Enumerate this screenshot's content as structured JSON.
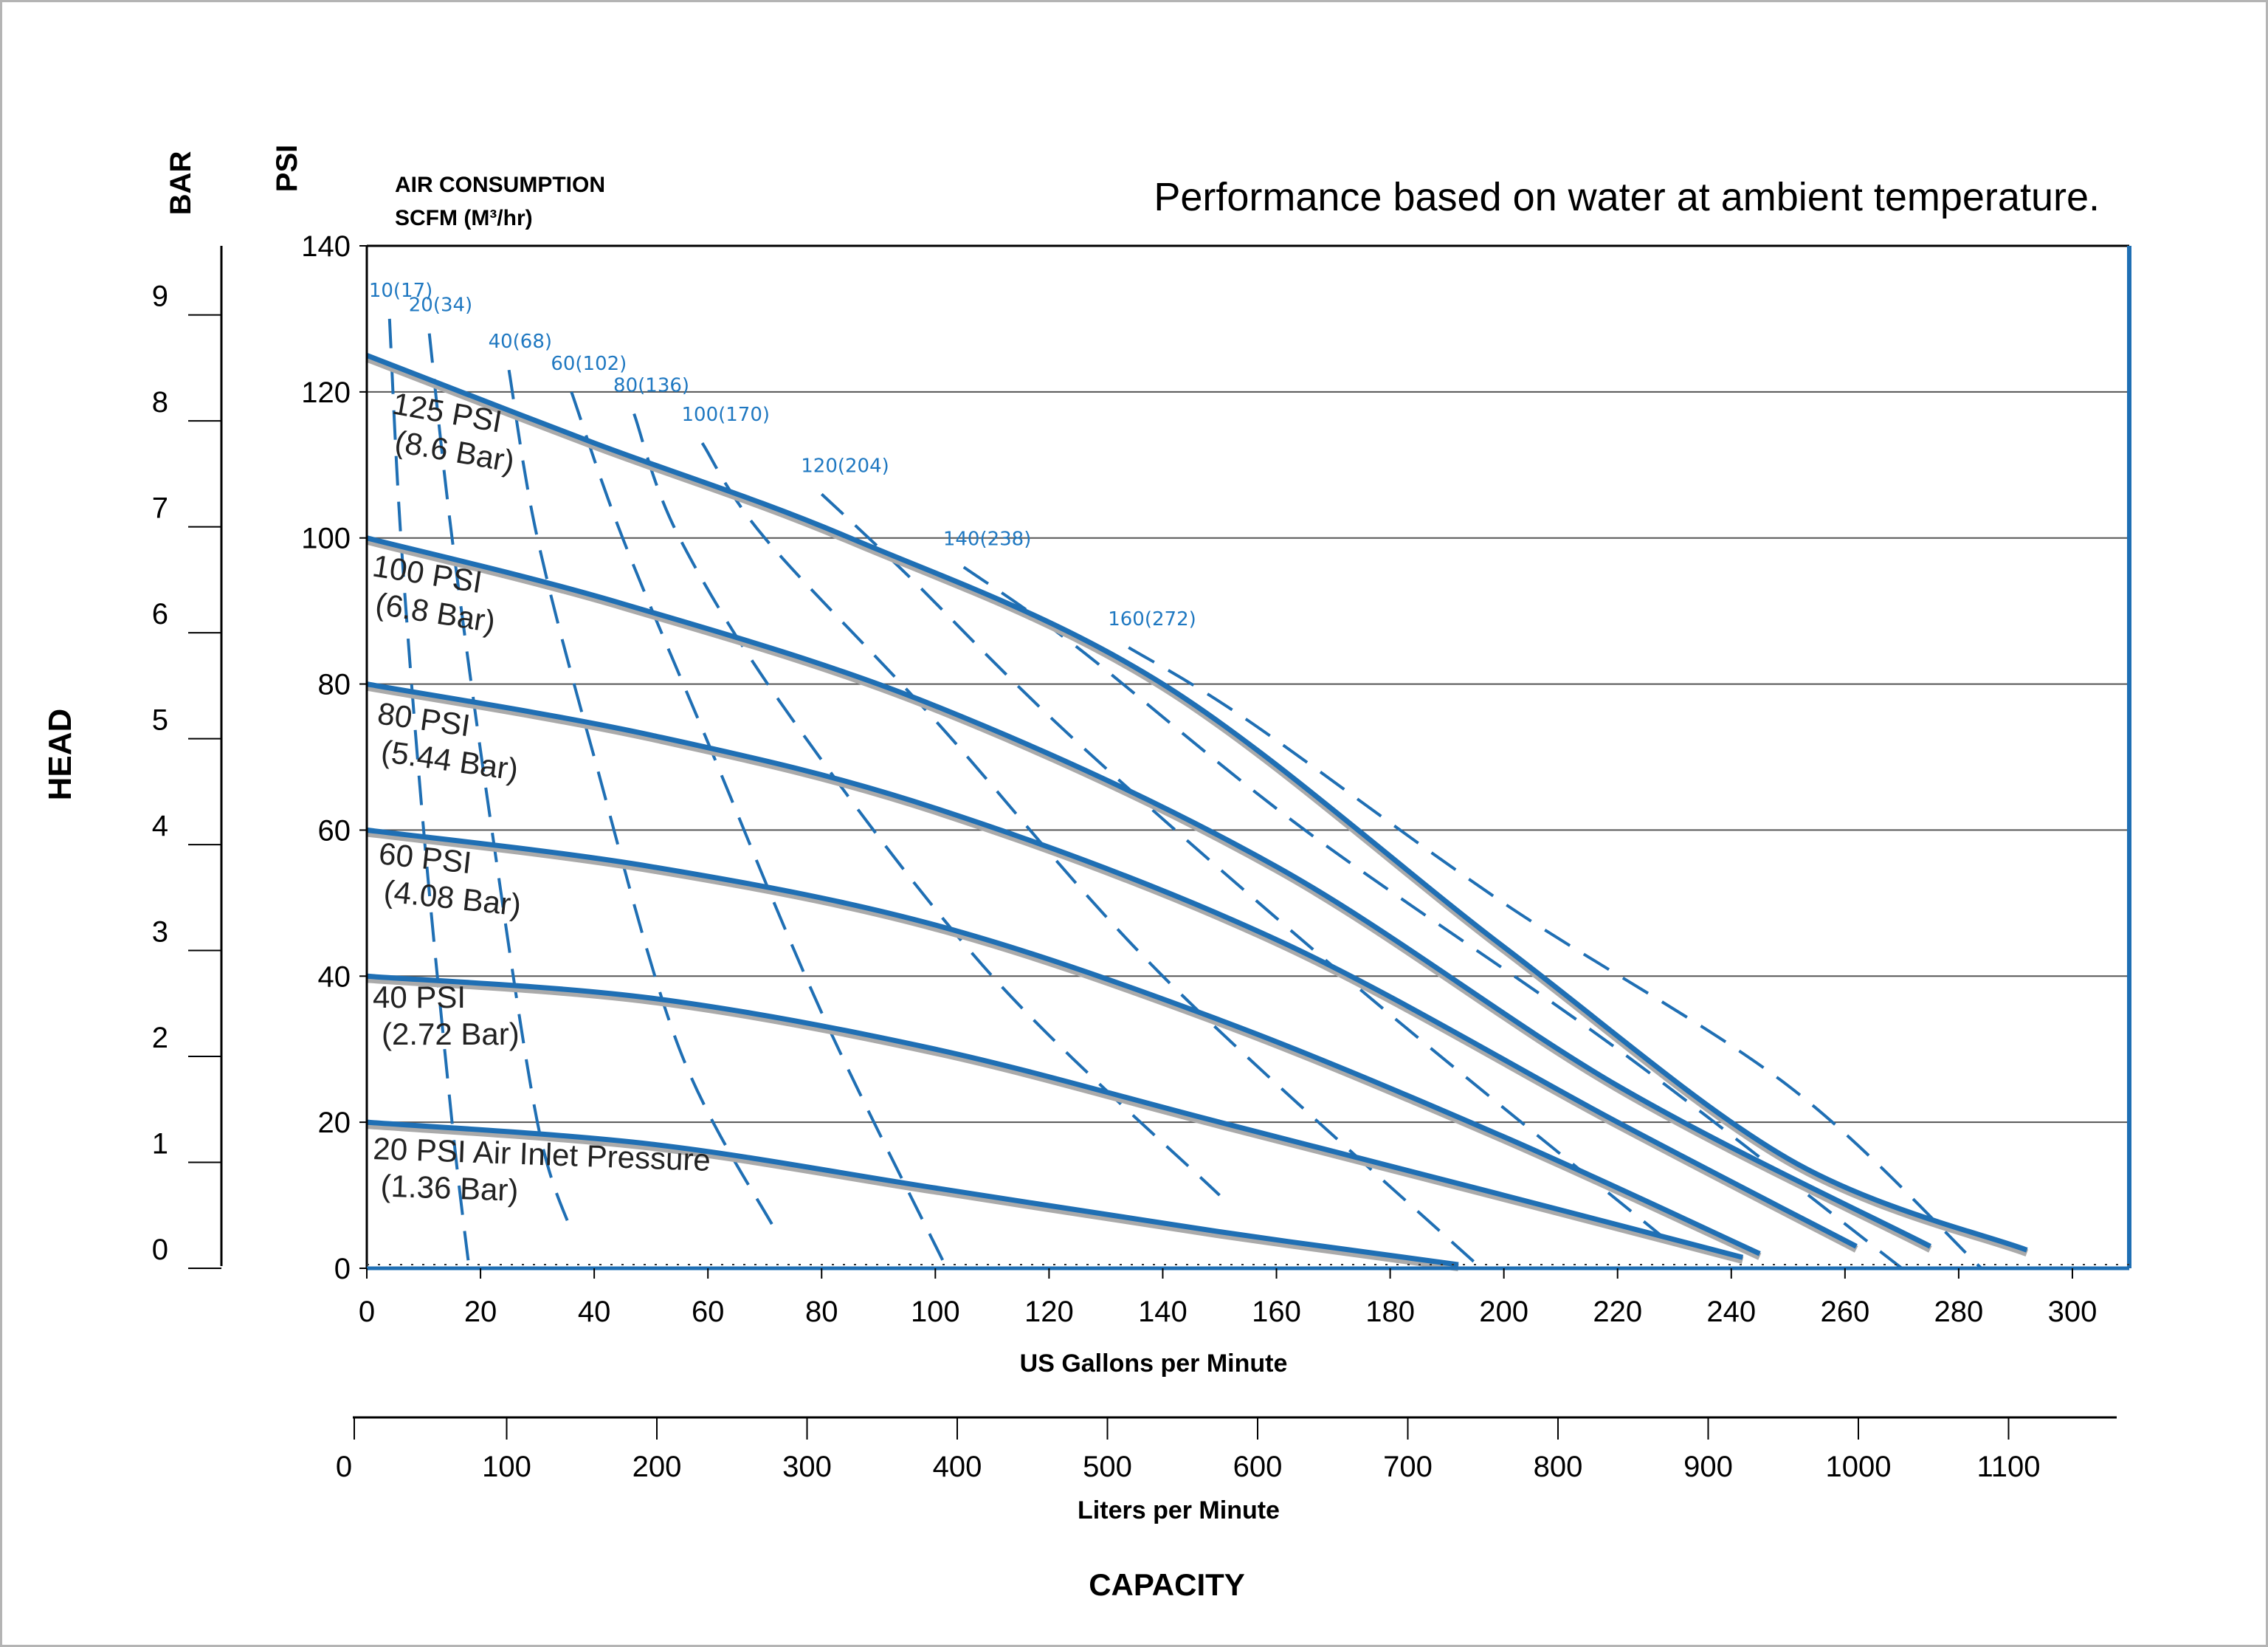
{
  "header": {
    "note": "Performance based on water at ambient temperature.",
    "air_consumption_title": "AIR CONSUMPTION",
    "air_consumption_units": "SCFM (M³/hr)"
  },
  "axes": {
    "bar_title": "BAR",
    "psi_title": "PSI",
    "head_title": "HEAD",
    "gpm_title": "US Gallons per Minute",
    "lpm_title": "Liters per Minute",
    "capacity_title": "CAPACITY",
    "psi_ticks": [
      "0",
      "20",
      "40",
      "60",
      "80",
      "100",
      "120",
      "140"
    ],
    "bar_ticks": [
      "0",
      "1",
      "2",
      "3",
      "4",
      "5",
      "6",
      "7",
      "8",
      "9"
    ],
    "gpm_ticks": [
      "0",
      "20",
      "40",
      "60",
      "80",
      "100",
      "120",
      "140",
      "160",
      "180",
      "200",
      "220",
      "240",
      "260",
      "280",
      "300"
    ],
    "lpm_ticks": [
      "0",
      "100",
      "200",
      "300",
      "400",
      "500",
      "600",
      "700",
      "800",
      "900",
      "1000",
      "1100"
    ]
  },
  "colors": {
    "curve": "#1f6fb4",
    "label_blue": "#1f78c1",
    "grid": "#555555",
    "shadow": "#aaaaaa"
  },
  "chart_data": {
    "type": "line",
    "title": "Performance based on water at ambient temperature.",
    "xlabel": "US Gallons per Minute",
    "x2label": "Liters per Minute",
    "ylabel": "PSI",
    "y2label": "BAR",
    "xlim": [
      0,
      310
    ],
    "ylim": [
      0,
      140
    ],
    "grid": true,
    "series": [
      {
        "name": "125 PSI (8.6 Bar)",
        "label_lines": [
          "125 PSI",
          "(8.6 Bar)"
        ],
        "x": [
          0,
          40,
          85,
          140,
          200,
          250,
          292
        ],
        "y": [
          125,
          113,
          100,
          80,
          44,
          15,
          2.5
        ]
      },
      {
        "name": "100 PSI (6.8 Bar)",
        "label_lines": [
          "100 PSI",
          "(6.8 Bar)"
        ],
        "x": [
          0,
          45,
          100,
          160,
          220,
          275
        ],
        "y": [
          100,
          91,
          77,
          55,
          25,
          3
        ]
      },
      {
        "name": "80 PSI (5.44 Bar)",
        "label_lines": [
          "80 PSI",
          "(5.44 Bar)"
        ],
        "x": [
          0,
          50,
          100,
          160,
          220,
          262
        ],
        "y": [
          80,
          73,
          63,
          45,
          20,
          3
        ]
      },
      {
        "name": "60 PSI (4.08 Bar)",
        "label_lines": [
          "60 PSI",
          "(4.08 Bar)"
        ],
        "x": [
          0,
          50,
          100,
          150,
          200,
          245
        ],
        "y": [
          60,
          55,
          47,
          34,
          18,
          2
        ]
      },
      {
        "name": "40 PSI (2.72 Bar)",
        "label_lines": [
          "40 PSI",
          "(2.72 Bar)"
        ],
        "x": [
          0,
          50,
          100,
          150,
          200,
          242
        ],
        "y": [
          40,
          37,
          30,
          20,
          10,
          1.5
        ]
      },
      {
        "name": "20 PSI Air Inlet Pressure (1.36 Bar)",
        "label_lines": [
          "20 PSI Air Inlet Pressure",
          "(1.36 Bar)"
        ],
        "x": [
          0,
          50,
          100,
          150,
          192
        ],
        "y": [
          20,
          17,
          11,
          5,
          0.5
        ]
      }
    ],
    "air_consumption": [
      {
        "label": "10(17)",
        "x": [
          4,
          6,
          10,
          15,
          18
        ],
        "y": [
          130,
          100,
          60,
          20,
          0
        ]
      },
      {
        "label": "20(34)",
        "x": [
          11,
          15,
          22,
          30,
          36
        ],
        "y": [
          128,
          100,
          60,
          20,
          5
        ]
      },
      {
        "label": "40(68)",
        "x": [
          25,
          30,
          40,
          55,
          72
        ],
        "y": [
          123,
          100,
          70,
          30,
          5
        ]
      },
      {
        "label": "60(102)",
        "x": [
          36,
          45,
          60,
          80,
          102
        ],
        "y": [
          120,
          100,
          72,
          35,
          0
        ]
      },
      {
        "label": "80(136)",
        "x": [
          47,
          55,
          75,
          110,
          150
        ],
        "y": [
          117,
          100,
          75,
          40,
          10
        ]
      },
      {
        "label": "100(170)",
        "x": [
          59,
          70,
          100,
          140,
          196
        ],
        "y": [
          113,
          100,
          75,
          40,
          0
        ]
      },
      {
        "label": "120(204)",
        "x": [
          80,
          95,
          125,
          175,
          230
        ],
        "y": [
          106,
          95,
          72,
          38,
          3
        ]
      },
      {
        "label": "140(238)",
        "x": [
          105,
          125,
          165,
          220,
          270
        ],
        "y": [
          96,
          85,
          60,
          30,
          0
        ]
      },
      {
        "label": "160(272)",
        "x": [
          134,
          155,
          200,
          250,
          284
        ],
        "y": [
          85,
          75,
          50,
          25,
          0
        ]
      }
    ]
  }
}
